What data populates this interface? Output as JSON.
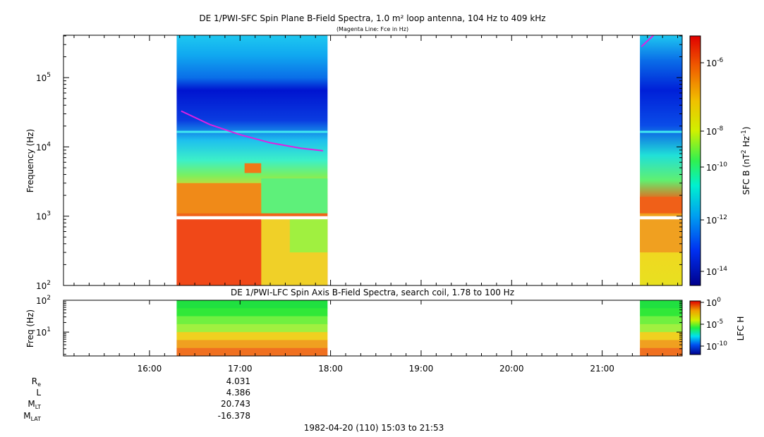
{
  "chart_data": [
    {
      "type": "heatmap",
      "title": "DE 1/PWI-SFC  Spin Plane B-Field Spectra, 1.0 m² loop antenna, 104 Hz to 409 kHz",
      "subtitle": "(Magenta Line: Fce in Hz)",
      "ylabel": "Frequency (Hz)",
      "yscale": "log",
      "ylim": [
        100,
        409000
      ],
      "yticks": [
        {
          "value": 100,
          "label": "10",
          "exp": "2"
        },
        {
          "value": 1000,
          "label": "10",
          "exp": "3"
        },
        {
          "value": 10000,
          "label": "10",
          "exp": "4"
        },
        {
          "value": 100000,
          "label": "10",
          "exp": "5"
        }
      ],
      "colorbar": {
        "label": "SFC B (nT",
        "label_exp1": "2",
        "label_mid": " Hz",
        "label_exp2": "-1",
        "label_end": ")",
        "scale": "log",
        "ticks": [
          {
            "label": "10",
            "exp": "-6"
          },
          {
            "label": "10",
            "exp": "-8"
          },
          {
            "label": "10",
            "exp": "-10"
          },
          {
            "label": "10",
            "exp": "-12"
          },
          {
            "label": "10",
            "exp": "-14"
          }
        ]
      },
      "data_intervals": [
        {
          "start": "16:18",
          "end": "17:58"
        },
        {
          "start": "21:25",
          "end": "21:53"
        }
      ],
      "fce_line": {
        "name": "Fce",
        "color": "#e020e0",
        "segments": [
          {
            "x": [
              "16:21",
              "16:40",
              "17:00",
              "17:20",
              "17:40",
              "17:55"
            ],
            "y": [
              33000,
              21000,
              15000,
              11500,
              9600,
              8800
            ]
          },
          {
            "x": [
              "21:26",
              "21:34"
            ],
            "y": [
              280000,
              409000
            ]
          }
        ]
      }
    },
    {
      "type": "heatmap",
      "title": "DE 1/PWI-LFC  Spin Axis B-Field Spectra, search coil, 1.78 to 100 Hz",
      "ylabel": "Freq (Hz)",
      "yscale": "log",
      "ylim": [
        1.78,
        100
      ],
      "yticks": [
        {
          "value": 10,
          "label": "10",
          "exp": "1"
        },
        {
          "value": 100,
          "label": "10",
          "exp": "2"
        }
      ],
      "colorbar": {
        "label": "LFC H",
        "scale": "log",
        "ticks": [
          {
            "label": "10",
            "exp": "0"
          },
          {
            "label": "10",
            "exp": "-5"
          },
          {
            "label": "10",
            "exp": "-10"
          }
        ]
      },
      "data_intervals": [
        {
          "start": "16:18",
          "end": "17:58"
        },
        {
          "start": "21:25",
          "end": "21:53"
        }
      ]
    }
  ],
  "xaxis": {
    "start": "15:03",
    "end": "21:53",
    "ticks": [
      "16:00",
      "17:00",
      "18:00",
      "19:00",
      "20:00",
      "21:00"
    ]
  },
  "ephemeris": {
    "rows": [
      {
        "label": "R",
        "sub": "e",
        "value": "4.031"
      },
      {
        "label": "L",
        "sub": "",
        "value": "4.386"
      },
      {
        "label": "M",
        "sub": "LT",
        "value": "20.743"
      },
      {
        "label": "M",
        "sub": "LAT",
        "value": "-16.378"
      }
    ]
  },
  "footer": "1982-04-20 (110) 15:03 to 21:53"
}
